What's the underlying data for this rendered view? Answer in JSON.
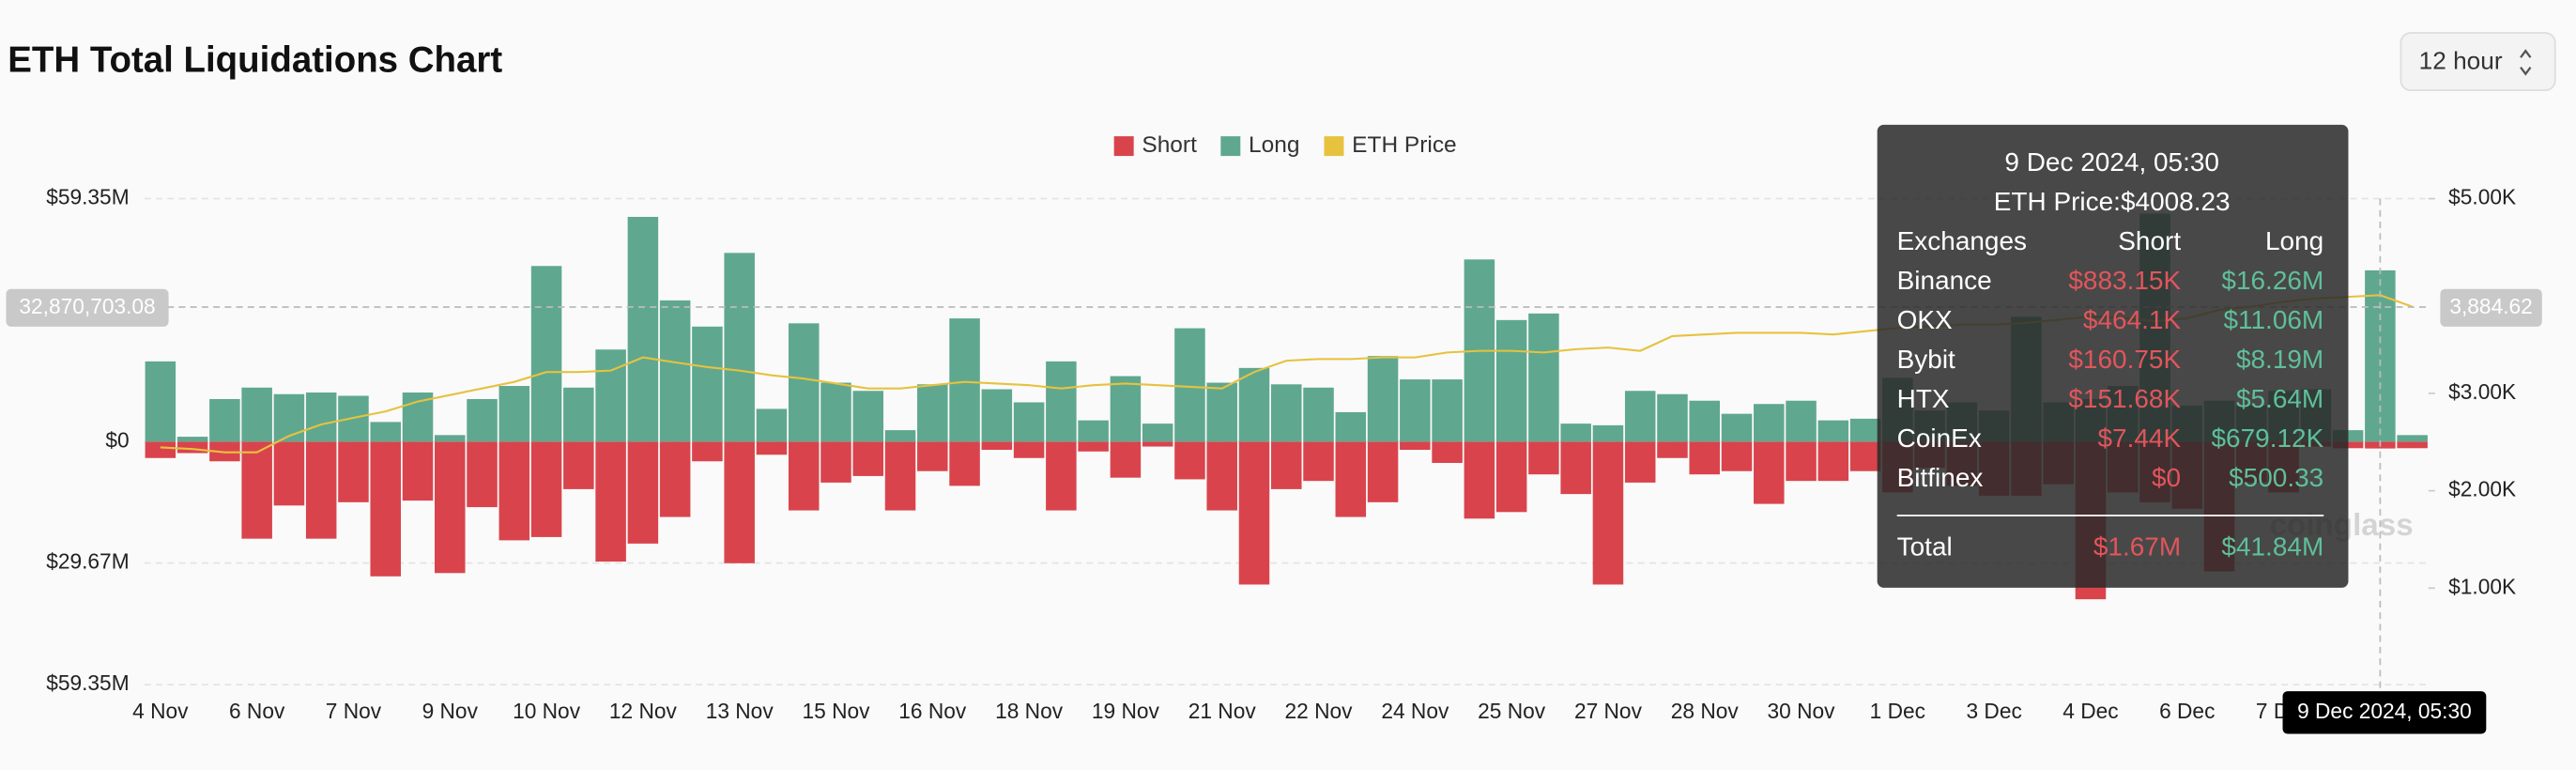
{
  "chart_data": {
    "type": "bar",
    "title": "ETH Total Liquidations Chart",
    "control": "12 hour",
    "watermark": "coinglass",
    "categories": [
      "4 Nov",
      null,
      null,
      "6 Nov",
      null,
      null,
      "7 Nov",
      null,
      null,
      "9 Nov",
      null,
      null,
      "10 Nov",
      null,
      null,
      "12 Nov",
      null,
      null,
      "13 Nov",
      null,
      null,
      "15 Nov",
      null,
      null,
      "16 Nov",
      null,
      null,
      "18 Nov",
      null,
      null,
      "19 Nov",
      null,
      null,
      "21 Nov",
      null,
      null,
      "22 Nov",
      null,
      null,
      "24 Nov",
      null,
      null,
      "25 Nov",
      null,
      null,
      "27 Nov",
      null,
      null,
      "28 Nov",
      null,
      null,
      "30 Nov",
      null,
      null,
      "1 Dec",
      null,
      null,
      "3 Dec",
      null,
      null,
      "4 Dec",
      null,
      null,
      "6 Dec",
      null,
      null,
      "7 Dec",
      null,
      null,
      null,
      null
    ],
    "series": [
      {
        "name": "Short",
        "color": "#d9444c",
        "values": [
          -4.0,
          -2.8,
          -4.8,
          -23.7,
          -15.6,
          -23.7,
          -14.8,
          -32.9,
          -14.4,
          -32.1,
          -16.0,
          -24.1,
          -23.3,
          -11.6,
          -29.3,
          -24.9,
          -18.4,
          -4.8,
          -29.7,
          -3.2,
          -16.8,
          -10.0,
          -8.4,
          -16.8,
          -7.2,
          -10.8,
          -2.0,
          -4.0,
          -16.8,
          -2.4,
          -8.8,
          -1.2,
          -9.2,
          -16.8,
          -34.9,
          -11.6,
          -9.6,
          -18.4,
          -14.8,
          -2.0,
          -5.2,
          -18.8,
          -17.2,
          -8.0,
          -12.8,
          -34.9,
          -10.0,
          -4.0,
          -8.0,
          -7.2,
          -15.2,
          -9.6,
          -9.6,
          -7.2,
          -12.4,
          -6.4,
          -10.8,
          -13.2,
          -13.2,
          -10.4,
          -38.5,
          -12.4,
          -14.8,
          -16.4,
          -31.7,
          -10.0,
          -12.4,
          -1.2,
          -1.6,
          -1.67,
          -1.6
        ]
      },
      {
        "name": "Long",
        "color": "#5fa88f",
        "values": [
          19.6,
          1.2,
          10.4,
          13.2,
          11.6,
          12.0,
          11.2,
          4.8,
          12.0,
          1.6,
          10.4,
          13.6,
          42.9,
          13.2,
          22.5,
          54.9,
          34.5,
          28.1,
          46.1,
          8.0,
          28.9,
          14.4,
          12.4,
          2.8,
          14.0,
          30.1,
          12.8,
          9.6,
          19.6,
          5.2,
          16.0,
          4.4,
          27.7,
          14.4,
          18.0,
          14.0,
          13.2,
          7.2,
          20.9,
          15.2,
          15.2,
          44.5,
          29.7,
          31.3,
          4.4,
          4.0,
          12.4,
          11.6,
          10.0,
          6.8,
          9.2,
          10.0,
          5.2,
          5.6,
          15.6,
          7.6,
          9.6,
          7.6,
          30.5,
          9.6,
          10.4,
          13.6,
          55.7,
          8.8,
          10.0,
          8.8,
          12.4,
          12.8,
          2.8,
          41.84,
          1.6
        ]
      },
      {
        "name": "ETH Price",
        "color": "#e6c23f",
        "type": "line",
        "axis": "y2",
        "values": [
          2445,
          2429,
          2395,
          2395,
          2563,
          2681,
          2748,
          2815,
          2916,
          2983,
          3050,
          3118,
          3219,
          3219,
          3235,
          3370,
          3319,
          3269,
          3235,
          3185,
          3151,
          3101,
          3050,
          3050,
          3084,
          3118,
          3101,
          3084,
          3050,
          3084,
          3101,
          3084,
          3067,
          3050,
          3219,
          3336,
          3353,
          3353,
          3370,
          3370,
          3420,
          3437,
          3437,
          3420,
          3454,
          3471,
          3437,
          3588,
          3605,
          3622,
          3622,
          3622,
          3605,
          3639,
          3672,
          3689,
          3706,
          3706,
          3723,
          3756,
          3790,
          3773,
          3740,
          3773,
          3857,
          3891,
          3941,
          3975,
          3992,
          4008.23,
          3891
        ]
      }
    ],
    "ylim": [
      -59.35,
      59.35
    ],
    "yticks": [
      {
        "value": -59.35,
        "label": "$59.35M"
      },
      {
        "value": -29.67,
        "label": "$29.67M"
      },
      {
        "value": 0,
        "label": "$0"
      },
      {
        "value": 59.35,
        "label": "$59.35M"
      }
    ],
    "y2lim": [
      0,
      5000
    ],
    "y2ticks": [
      {
        "value": 1000,
        "label": "$1.00K"
      },
      {
        "value": 2000,
        "label": "$2.00K"
      },
      {
        "value": 3000,
        "label": "$3.00K"
      },
      {
        "value": 5000,
        "label": "$5.00K"
      }
    ],
    "grid": true,
    "legend": "top",
    "crosshair": {
      "y_label": "32,870,703.08",
      "y2_label": "3,884.62",
      "x_label": "9 Dec 2024, 05:30"
    },
    "tooltip": {
      "title": "9 Dec 2024, 05:30",
      "price": "ETH Price:$4008.23",
      "headers": [
        "Exchanges",
        "Short",
        "Long"
      ],
      "rows": [
        [
          "Binance",
          "$883.15K",
          "$16.26M"
        ],
        [
          "OKX",
          "$464.1K",
          "$11.06M"
        ],
        [
          "Bybit",
          "$160.75K",
          "$8.19M"
        ],
        [
          "HTX",
          "$151.68K",
          "$5.64M"
        ],
        [
          "CoinEx",
          "$7.44K",
          "$679.12K"
        ],
        [
          "Bitfinex",
          "$0",
          "$500.33"
        ]
      ],
      "total": [
        "Total",
        "$1.67M",
        "$41.84M"
      ]
    }
  }
}
